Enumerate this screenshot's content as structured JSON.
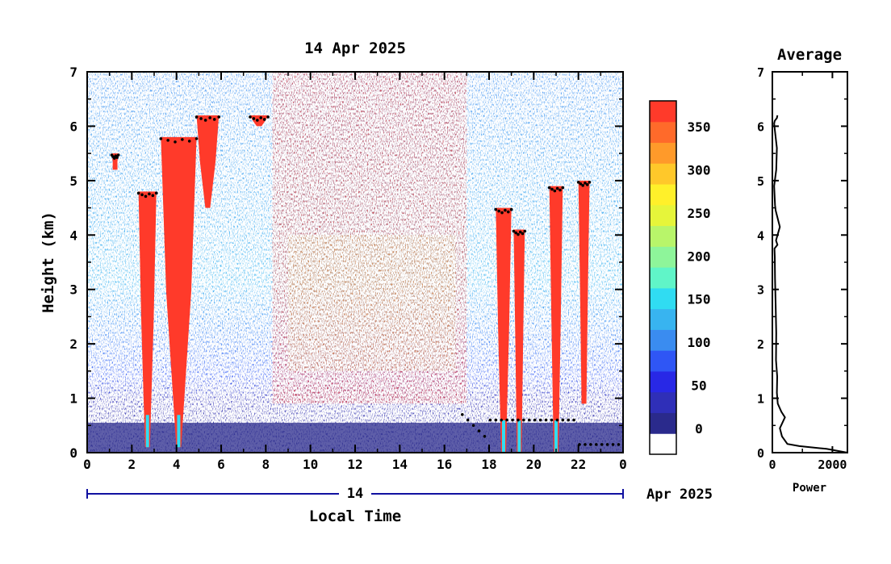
{
  "chart_data": [
    {
      "type": "heatmap",
      "title": "14 Apr 2025",
      "xlabel": "Local Time",
      "ylabel": "Height (km)",
      "x_ticks": [
        "0",
        "2",
        "4",
        "6",
        "8",
        "10",
        "12",
        "14",
        "16",
        "18",
        "20",
        "22",
        "0"
      ],
      "x_values": [
        0,
        2,
        4,
        6,
        8,
        10,
        12,
        14,
        16,
        18,
        20,
        22,
        24
      ],
      "y_ticks": [
        "0",
        "1",
        "2",
        "3",
        "4",
        "5",
        "6",
        "7"
      ],
      "y_values": [
        0,
        1,
        2,
        3,
        4,
        5,
        6,
        7
      ],
      "xlim": [
        0,
        24
      ],
      "ylim": [
        0,
        7
      ],
      "date_bar": {
        "day": "14",
        "month_year": "Apr 2025"
      },
      "colorbar": {
        "ticks": [
          "0",
          "50",
          "100",
          "150",
          "200",
          "250",
          "300",
          "350"
        ],
        "tick_values": [
          0,
          50,
          100,
          150,
          200,
          250,
          300,
          350
        ],
        "range": [
          -30,
          380
        ],
        "colors": [
          "#ffffff",
          "#2a2a8c",
          "#2f2fb8",
          "#2828e6",
          "#2f56f5",
          "#3a8cf0",
          "#38b4f0",
          "#30dcf2",
          "#60f5c8",
          "#8ef59a",
          "#b8f56a",
          "#e6f53a",
          "#fff02a",
          "#ffc82a",
          "#ff9a2a",
          "#ff6a2a",
          "#ff3a2a"
        ]
      },
      "clouds": [
        {
          "t_start": 2.3,
          "t_end": 3.1,
          "h_bottom": 0.1,
          "h_top": 4.8
        },
        {
          "t_start": 3.3,
          "t_end": 4.9,
          "h_bottom": 0.1,
          "h_top": 5.8
        },
        {
          "t_start": 4.9,
          "t_end": 5.9,
          "h_bottom": 4.5,
          "h_top": 6.2
        },
        {
          "t_start": 7.3,
          "t_end": 8.1,
          "h_bottom": 6.0,
          "h_top": 6.2
        },
        {
          "t_start": 1.1,
          "t_end": 1.4,
          "h_bottom": 5.2,
          "h_top": 5.5
        },
        {
          "t_start": 18.3,
          "t_end": 19.0,
          "h_bottom": 0.0,
          "h_top": 4.5
        },
        {
          "t_start": 19.1,
          "t_end": 19.6,
          "h_bottom": 0.0,
          "h_top": 4.1
        },
        {
          "t_start": 20.7,
          "t_end": 21.3,
          "h_bottom": 0.0,
          "h_top": 4.9
        },
        {
          "t_start": 22.0,
          "t_end": 22.5,
          "h_bottom": 0.9,
          "h_top": 5.0
        }
      ]
    },
    {
      "type": "line",
      "title": "Average",
      "xlabel": "Power",
      "x_ticks": [
        "0",
        "2000"
      ],
      "x_values": [
        0,
        2000
      ],
      "y_ticks": [
        "7",
        "6",
        "5",
        "4",
        "3",
        "2",
        "1",
        "0"
      ],
      "xlim": [
        0,
        2500
      ],
      "ylim": [
        0,
        7
      ],
      "profile": {
        "power": [
          2500,
          1800,
          900,
          500,
          320,
          250,
          420,
          300,
          180,
          150,
          160,
          120,
          130,
          110,
          90,
          80,
          70,
          170,
          120,
          250,
          110,
          90,
          60,
          130,
          150,
          90,
          60,
          80,
          150,
          170
        ],
        "height": [
          0.0,
          0.07,
          0.12,
          0.16,
          0.3,
          0.45,
          0.65,
          0.75,
          0.9,
          1.1,
          1.4,
          1.7,
          2.2,
          2.7,
          3.2,
          3.6,
          3.75,
          3.82,
          3.9,
          4.15,
          4.45,
          4.55,
          4.9,
          5.2,
          5.6,
          5.9,
          6.05,
          6.1,
          6.15,
          6.2
        ]
      }
    }
  ]
}
